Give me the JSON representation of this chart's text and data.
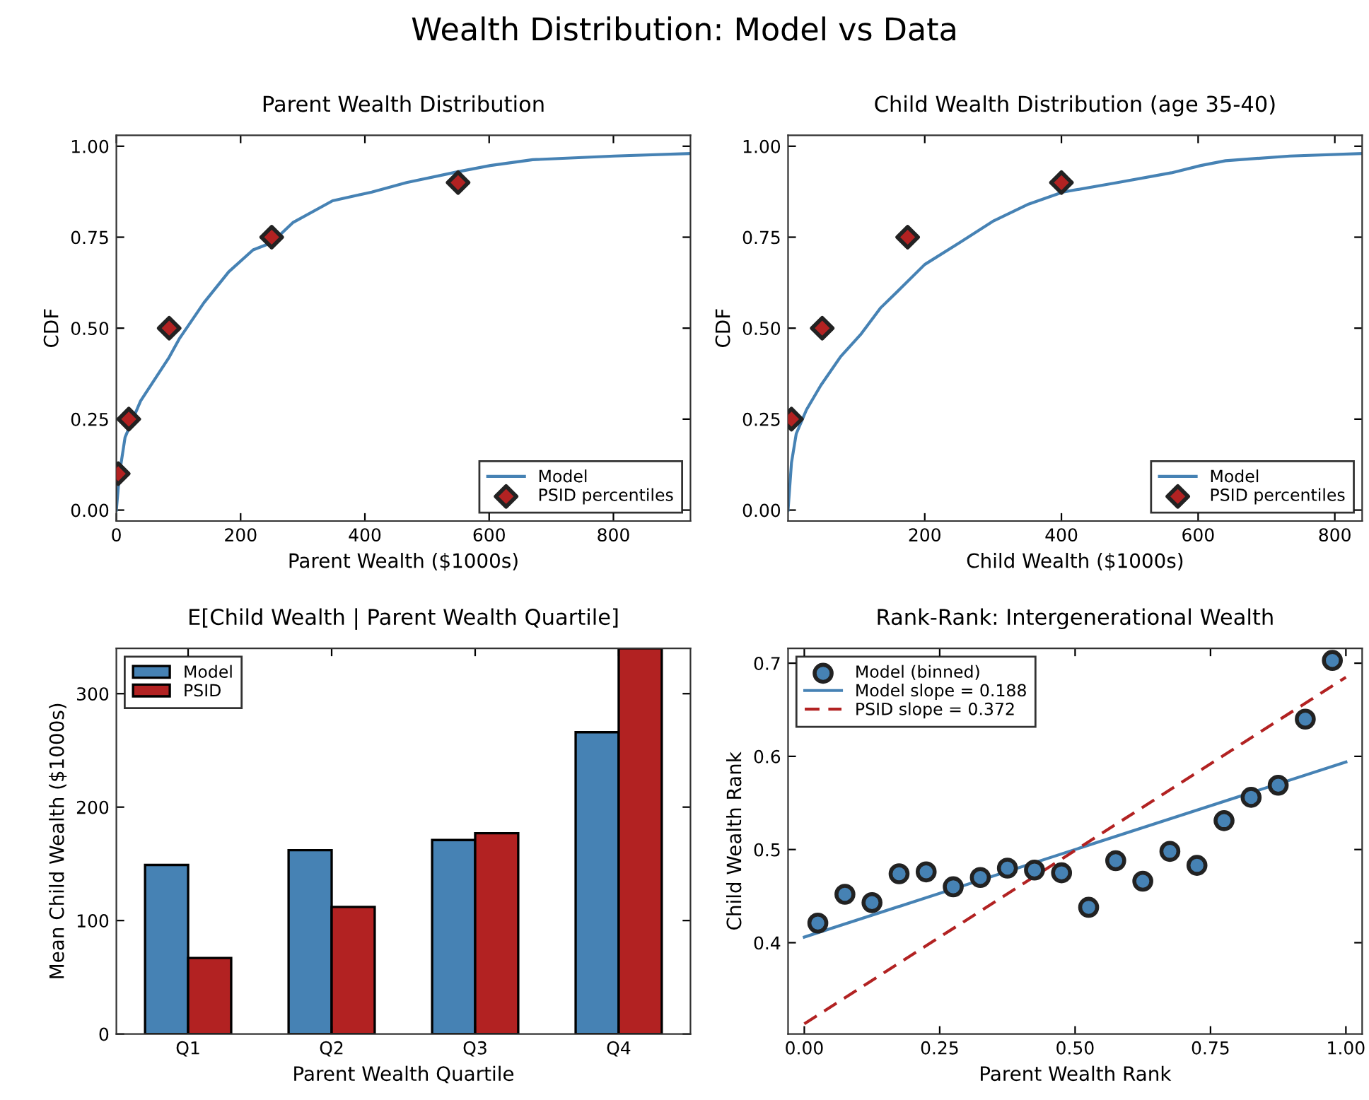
{
  "chart_data": [
    {
      "type": "line",
      "title": "Parent Wealth Distribution",
      "xlabel": "Parent Wealth ($1000s)",
      "ylabel": "CDF",
      "annotations": [
        "Wealth Distribution: Model vs Data"
      ],
      "legend": "bottom right",
      "grid": false,
      "xlim": [
        0,
        924
      ],
      "xticks": [
        0,
        200,
        400,
        600,
        800
      ],
      "ylim": [
        -0.03,
        1.03
      ],
      "yticks": [
        {
          "value": 0,
          "label": "0.00"
        },
        {
          "value": 0.25,
          "label": "0.25"
        },
        {
          "value": 0.5,
          "label": "0.50"
        },
        {
          "value": 0.75,
          "label": "0.75"
        },
        {
          "value": 1,
          "label": "1.00"
        }
      ],
      "series": [
        {
          "name": "Model",
          "type": "line",
          "color": "#4682b4",
          "line_style": "solid",
          "x": [
            0,
            5,
            14,
            39,
            85,
            101,
            141,
            181,
            220,
            250,
            284,
            348,
            411,
            467,
            550,
            602,
            670,
            801,
            924
          ],
          "values": [
            0,
            0.1,
            0.2,
            0.3,
            0.42,
            0.47,
            0.57,
            0.655,
            0.715,
            0.735,
            0.79,
            0.85,
            0.874,
            0.9,
            0.93,
            0.947,
            0.963,
            0.973,
            0.98
          ]
        },
        {
          "name": "PSID percentiles",
          "type": "scatter",
          "color": "#b22222",
          "marker": "diamond",
          "x": [
            3,
            20,
            85,
            250,
            550
          ],
          "values": [
            0.1,
            0.25,
            0.5,
            0.75,
            0.9
          ]
        }
      ]
    },
    {
      "type": "line",
      "title": "Child Wealth Distribution (age 35-40)",
      "xlabel": "Child Wealth ($1000s)",
      "ylabel": "CDF",
      "legend": "bottom right",
      "grid": false,
      "xlim": [
        0,
        840
      ],
      "xticks": [
        200,
        400,
        600,
        800
      ],
      "ylim": [
        -0.03,
        1.03
      ],
      "yticks": [
        {
          "value": 0,
          "label": "0.00"
        },
        {
          "value": 0.25,
          "label": "0.25"
        },
        {
          "value": 0.5,
          "label": "0.50"
        },
        {
          "value": 0.75,
          "label": "0.75"
        },
        {
          "value": 1,
          "label": "1.00"
        }
      ],
      "series": [
        {
          "name": "Model",
          "type": "line",
          "color": "#4682b4",
          "line_style": "solid",
          "x": [
            0,
            5,
            12,
            27,
            48,
            77,
            106,
            135,
            164,
            200,
            251,
            301,
            352,
            402,
            482,
            561,
            604,
            640,
            734,
            840
          ],
          "values": [
            0,
            0.13,
            0.21,
            0.276,
            0.343,
            0.422,
            0.482,
            0.555,
            0.608,
            0.675,
            0.735,
            0.795,
            0.841,
            0.874,
            0.9,
            0.927,
            0.947,
            0.96,
            0.973,
            0.98
          ]
        },
        {
          "name": "PSID percentiles",
          "type": "scatter",
          "color": "#b22222",
          "marker": "diamond",
          "x": [
            5,
            50,
            175,
            400
          ],
          "values": [
            0.25,
            0.5,
            0.75,
            0.9
          ]
        }
      ]
    },
    {
      "type": "bar",
      "title": "E[Child Wealth | Parent Wealth Quartile]",
      "xlabel": "Parent Wealth Quartile",
      "ylabel": "Mean Child Wealth ($1000s)",
      "legend": "top left",
      "grid": false,
      "categories": [
        "Q1",
        "Q2",
        "Q3",
        "Q4"
      ],
      "ylim": [
        0,
        340
      ],
      "yticks": [
        0,
        100,
        200,
        300
      ],
      "series": [
        {
          "name": "Model",
          "color": "#4682b4",
          "values": [
            149,
            162,
            171,
            266
          ]
        },
        {
          "name": "PSID",
          "color": "#b22222",
          "values": [
            67,
            112,
            177,
            340
          ]
        }
      ]
    },
    {
      "type": "scatter",
      "title": "Rank-Rank: Intergenerational Wealth",
      "xlabel": "Parent Wealth Rank",
      "ylabel": "Child Wealth Rank",
      "legend": "top left",
      "grid": false,
      "xlim": [
        -0.03,
        1.03
      ],
      "xticks": [
        {
          "value": 0,
          "label": "0.00"
        },
        {
          "value": 0.25,
          "label": "0.25"
        },
        {
          "value": 0.5,
          "label": "0.50"
        },
        {
          "value": 0.75,
          "label": "0.75"
        },
        {
          "value": 1,
          "label": "1.00"
        }
      ],
      "ylim": [
        0.302,
        0.716
      ],
      "yticks": [
        0.4,
        0.5,
        0.6,
        0.7
      ],
      "series": [
        {
          "name": "Model (binned)",
          "type": "scatter",
          "color": "#4682b4",
          "marker": "circle",
          "x": [
            0.025,
            0.075,
            0.125,
            0.175,
            0.225,
            0.275,
            0.325,
            0.375,
            0.425,
            0.475,
            0.525,
            0.575,
            0.625,
            0.675,
            0.725,
            0.775,
            0.825,
            0.875,
            0.925,
            0.975
          ],
          "values": [
            0.421,
            0.452,
            0.443,
            0.474,
            0.476,
            0.46,
            0.47,
            0.48,
            0.478,
            0.475,
            0.438,
            0.488,
            0.466,
            0.498,
            0.483,
            0.531,
            0.556,
            0.569,
            0.64,
            0.703
          ]
        },
        {
          "name": "Model slope = 0.188",
          "type": "line",
          "color": "#4682b4",
          "line_style": "solid",
          "x": [
            0,
            1
          ],
          "values": [
            0.406,
            0.594
          ]
        },
        {
          "name": "PSID slope = 0.372",
          "type": "line",
          "color": "#b22222",
          "line_style": "dashed",
          "x": [
            0,
            1
          ],
          "values": [
            0.313,
            0.685
          ]
        }
      ]
    }
  ]
}
